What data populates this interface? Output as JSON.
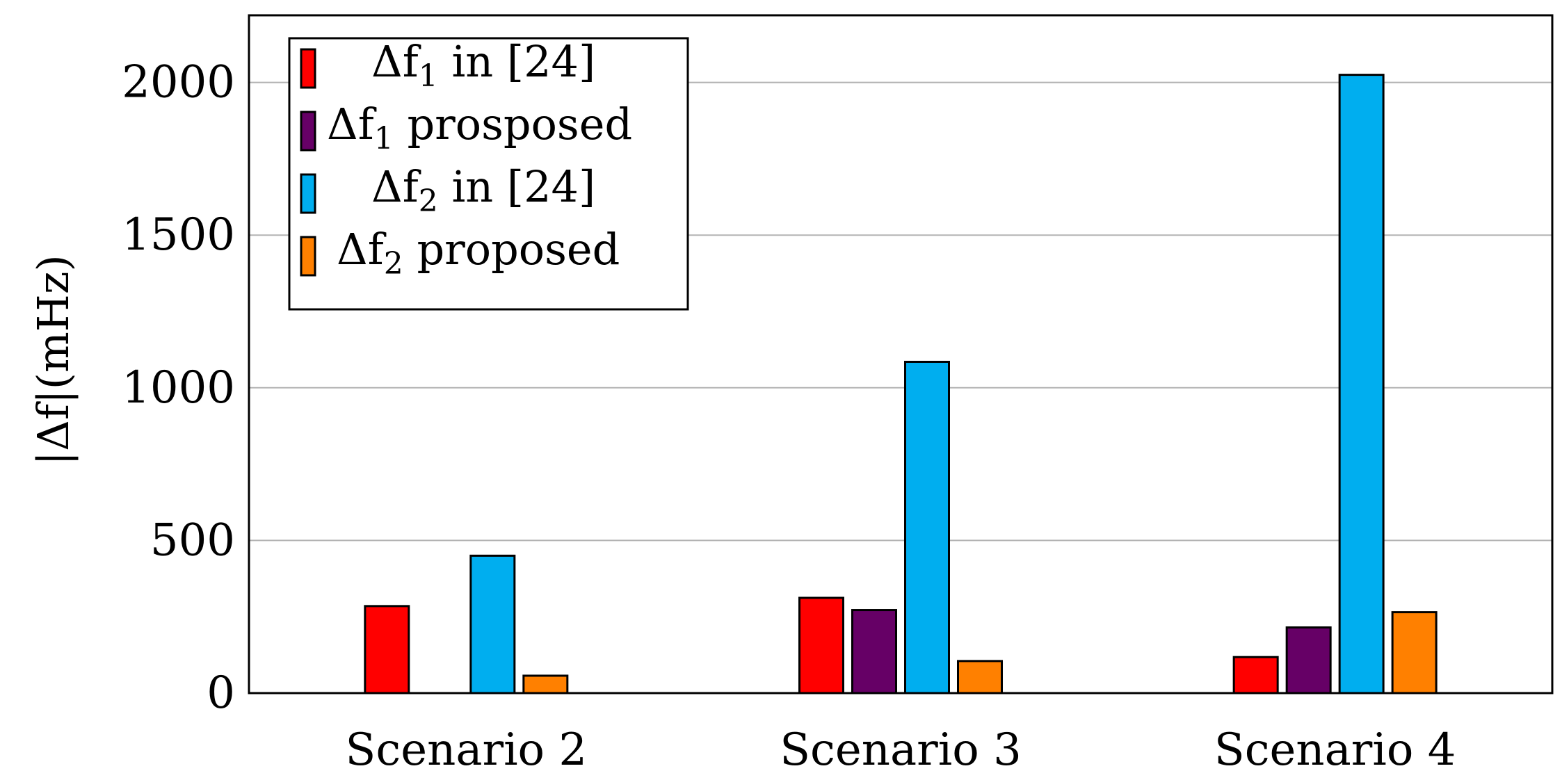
{
  "chart_data": {
    "type": "bar",
    "ylabel": "|Δf|(mHz)",
    "categories": [
      "Scenario 2",
      "Scenario 3",
      "Scenario 4"
    ],
    "ylim": [
      0,
      2220
    ],
    "yticks": [
      0,
      500,
      1000,
      1500,
      2000
    ],
    "grid": true,
    "legend_position": "top-left",
    "series": [
      {
        "name": "Δf",
        "sub": "1",
        "suffix": " in [24]",
        "color": "#ff0000",
        "values": [
          285,
          312,
          118
        ]
      },
      {
        "name": "Δf",
        "sub": "1",
        "suffix": " prospose",
        "suffix_tail": "d",
        "color": "#660066",
        "values": [
          0,
          272,
          215
        ]
      },
      {
        "name": "Δf",
        "sub": "2",
        "suffix": " in [24]",
        "color": "#00aeef",
        "values": [
          450,
          1085,
          2025
        ]
      },
      {
        "name": "Δf",
        "sub": "2",
        "suffix": " proposed",
        "color": "#ff8000",
        "values": [
          57,
          105,
          265
        ]
      }
    ]
  }
}
